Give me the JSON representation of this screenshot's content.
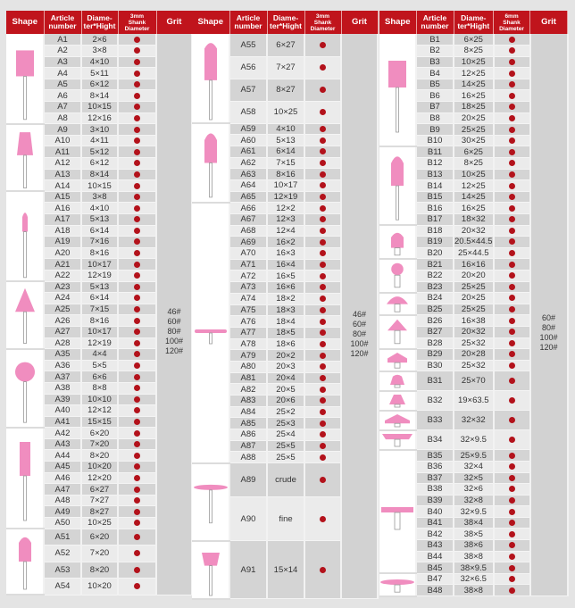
{
  "colors": {
    "header": "#c0141c",
    "dot": "#b3121b",
    "shape_fill": "#f08dbf"
  },
  "tables": [
    {
      "headers": {
        "shape": "Shape",
        "article": "Article number",
        "size": "Diame-\nter*Hight",
        "shank": "3mm\nShank\nDiameter",
        "grit": "Grit"
      },
      "grit": "46#\n60#\n80#\n100#\n120#",
      "groups": [
        {
          "shape": "cylinder-icon",
          "rows": [
            [
              "A1",
              "2×6"
            ],
            [
              "A2",
              "3×8"
            ],
            [
              "A3",
              "4×10"
            ],
            [
              "A4",
              "5×11"
            ],
            [
              "A5",
              "6×12"
            ],
            [
              "A6",
              "8×14"
            ],
            [
              "A7",
              "10×15"
            ],
            [
              "A8",
              "12×16"
            ]
          ]
        },
        {
          "shape": "taper-icon",
          "rows": [
            [
              "A9",
              "3×10"
            ],
            [
              "A10",
              "4×11"
            ],
            [
              "A11",
              "5×12"
            ],
            [
              "A12",
              "6×12"
            ],
            [
              "A13",
              "8×14"
            ],
            [
              "A14",
              "10×15"
            ]
          ]
        },
        {
          "shape": "small-bullet-icon",
          "rows": [
            [
              "A15",
              "3×8"
            ],
            [
              "A16",
              "4×10"
            ],
            [
              "A17",
              "5×13"
            ],
            [
              "A18",
              "6×14"
            ],
            [
              "A19",
              "7×16"
            ],
            [
              "A20",
              "8×16"
            ],
            [
              "A21",
              "10×17"
            ],
            [
              "A22",
              "12×19"
            ]
          ]
        },
        {
          "shape": "cone-icon",
          "rows": [
            [
              "A23",
              "5×13"
            ],
            [
              "A24",
              "6×14"
            ],
            [
              "A25",
              "7×15"
            ],
            [
              "A26",
              "8×16"
            ],
            [
              "A27",
              "10×17"
            ],
            [
              "A28",
              "12×19"
            ]
          ]
        },
        {
          "shape": "ball-icon",
          "rows": [
            [
              "A35",
              "4×4"
            ],
            [
              "A36",
              "5×5"
            ],
            [
              "A37",
              "6×6"
            ],
            [
              "A38",
              "8×8"
            ],
            [
              "A39",
              "10×10"
            ],
            [
              "A40",
              "12×12"
            ],
            [
              "A41",
              "15×15"
            ]
          ]
        },
        {
          "shape": "tall-cylinder-icon",
          "rows": [
            [
              "A42",
              "6×20"
            ],
            [
              "A43",
              "7×20"
            ],
            [
              "A44",
              "8×20"
            ],
            [
              "A45",
              "10×20"
            ],
            [
              "A46",
              "12×20"
            ],
            [
              "A47",
              "6×27"
            ],
            [
              "A48",
              "7×27"
            ],
            [
              "A49",
              "8×27"
            ],
            [
              "A50",
              "10×25"
            ]
          ]
        },
        {
          "shape": "bullet-icon",
          "rows": [
            [
              "A51",
              "6×20"
            ],
            [
              "A52",
              "7×20"
            ],
            [
              "A53",
              "8×20"
            ],
            [
              "A54",
              "10×20"
            ]
          ]
        }
      ]
    },
    {
      "headers": {
        "shape": "Shape",
        "article": "Article number",
        "size": "Diame-\nter*Hight",
        "shank": "3mm\nShank\nDiameter",
        "grit": "Grit"
      },
      "grit": "46#\n60#\n80#\n100#\n120#",
      "groups": [
        {
          "shape": "long-bullet-icon",
          "rows": [
            [
              "A55",
              "6×27"
            ],
            [
              "A56",
              "7×27"
            ],
            [
              "A57",
              "8×27"
            ],
            [
              "A58",
              "10×25"
            ]
          ]
        },
        {
          "shape": "bullet-icon",
          "rows": [
            [
              "A59",
              "4×10"
            ],
            [
              "A60",
              "5×13"
            ],
            [
              "A61",
              "6×14"
            ],
            [
              "A62",
              "7×15"
            ],
            [
              "A63",
              "8×16"
            ],
            [
              "A64",
              "10×17"
            ],
            [
              "A65",
              "12×19"
            ]
          ]
        },
        {
          "shape": "thin-disc-icon",
          "rows": [
            [
              "A66",
              "12×2"
            ],
            [
              "A67",
              "12×3"
            ],
            [
              "A68",
              "12×4"
            ],
            [
              "A69",
              "16×2"
            ],
            [
              "A70",
              "16×3"
            ],
            [
              "A71",
              "16×4"
            ],
            [
              "A72",
              "16×5"
            ],
            [
              "A73",
              "16×6"
            ],
            [
              "A74",
              "18×2"
            ],
            [
              "A75",
              "18×3"
            ],
            [
              "A76",
              "18×4"
            ],
            [
              "A77",
              "18×5"
            ],
            [
              "A78",
              "18×6"
            ],
            [
              "A79",
              "20×2"
            ],
            [
              "A80",
              "20×3"
            ],
            [
              "A81",
              "20×4"
            ],
            [
              "A82",
              "20×5"
            ],
            [
              "A83",
              "20×6"
            ],
            [
              "A84",
              "25×2"
            ],
            [
              "A85",
              "25×3"
            ],
            [
              "A86",
              "25×4"
            ],
            [
              "A87",
              "25×5"
            ],
            [
              "A88",
              "25×5"
            ]
          ]
        },
        {
          "shape": "disc-icon",
          "rows": [
            [
              "A89",
              "crude"
            ],
            [
              "A90",
              "fine"
            ]
          ]
        },
        {
          "shape": "cup-icon",
          "rows": [
            [
              "A91",
              "15×14"
            ]
          ]
        }
      ]
    },
    {
      "headers": {
        "shape": "Shape",
        "article": "Article number",
        "size": "Diame-\nter*Hight",
        "shank": "6mm\nShank\nDiameter",
        "grit": "Grit"
      },
      "grit": "60#\n80#\n100#\n120#",
      "groups": [
        {
          "shape": "cylinder-icon",
          "rows": [
            [
              "B1",
              "6×25"
            ],
            [
              "B2",
              "8×25"
            ],
            [
              "B3",
              "10×25"
            ],
            [
              "B4",
              "12×25"
            ],
            [
              "B5",
              "14×25"
            ],
            [
              "B6",
              "16×25"
            ],
            [
              "B7",
              "18×25"
            ],
            [
              "B8",
              "20×25"
            ],
            [
              "B9",
              "25×25"
            ],
            [
              "B10",
              "30×25"
            ]
          ]
        },
        {
          "shape": "bullet-icon",
          "rows": [
            [
              "B11",
              "6×25"
            ],
            [
              "B12",
              "8×25"
            ],
            [
              "B13",
              "10×25"
            ],
            [
              "B14",
              "12×25"
            ],
            [
              "B15",
              "14×25"
            ],
            [
              "B16",
              "16×25"
            ],
            [
              "B17",
              "18×32"
            ]
          ]
        },
        {
          "shape": "short-bullet-icon",
          "rows": [
            [
              "B18",
              "20×32"
            ],
            [
              "B19",
              "20.5×44.5"
            ],
            [
              "B20",
              "25×44.5"
            ]
          ]
        },
        {
          "shape": "ball-icon",
          "rows": [
            [
              "B21",
              "16×16"
            ],
            [
              "B22",
              "20×20"
            ],
            [
              "B23",
              "25×25"
            ]
          ]
        },
        {
          "shape": "half-ball-icon",
          "rows": [
            [
              "B24",
              "20×25"
            ],
            [
              "B25",
              "25×25"
            ]
          ]
        },
        {
          "shape": "cone-icon",
          "rows": [
            [
              "B26",
              "16×38"
            ],
            [
              "B27",
              "20×32"
            ],
            [
              "B28",
              "25×32"
            ]
          ]
        },
        {
          "shape": "arrow-icon",
          "rows": [
            [
              "B29",
              "20×28"
            ],
            [
              "B30",
              "25×32"
            ]
          ]
        },
        {
          "shape": "bell-icon",
          "rows": [
            [
              "B31",
              "25×70"
            ]
          ]
        },
        {
          "shape": "cone-taper-icon",
          "rows": [
            [
              "B32",
              "19×63.5"
            ]
          ]
        },
        {
          "shape": "wide-arrow-icon",
          "rows": [
            [
              "B33",
              "32×32"
            ]
          ]
        },
        {
          "shape": "inverted-taper-icon",
          "rows": [
            [
              "B34",
              "32×9.5"
            ]
          ]
        },
        {
          "shape": "wheel-icon",
          "rows": [
            [
              "B35",
              "25×9.5"
            ],
            [
              "B36",
              "32×4"
            ],
            [
              "B37",
              "32×5"
            ],
            [
              "B38",
              "32×6"
            ],
            [
              "B39",
              "32×8"
            ],
            [
              "B40",
              "32×9.5"
            ],
            [
              "B41",
              "38×4"
            ],
            [
              "B42",
              "38×5"
            ],
            [
              "B43",
              "38×6"
            ],
            [
              "B44",
              "38×8"
            ],
            [
              "B45",
              "38×9.5"
            ]
          ]
        },
        {
          "shape": "flat-disc-icon",
          "rows": [
            [
              "B47",
              "32×6.5"
            ],
            [
              "B48",
              "38×8"
            ]
          ]
        }
      ]
    }
  ]
}
